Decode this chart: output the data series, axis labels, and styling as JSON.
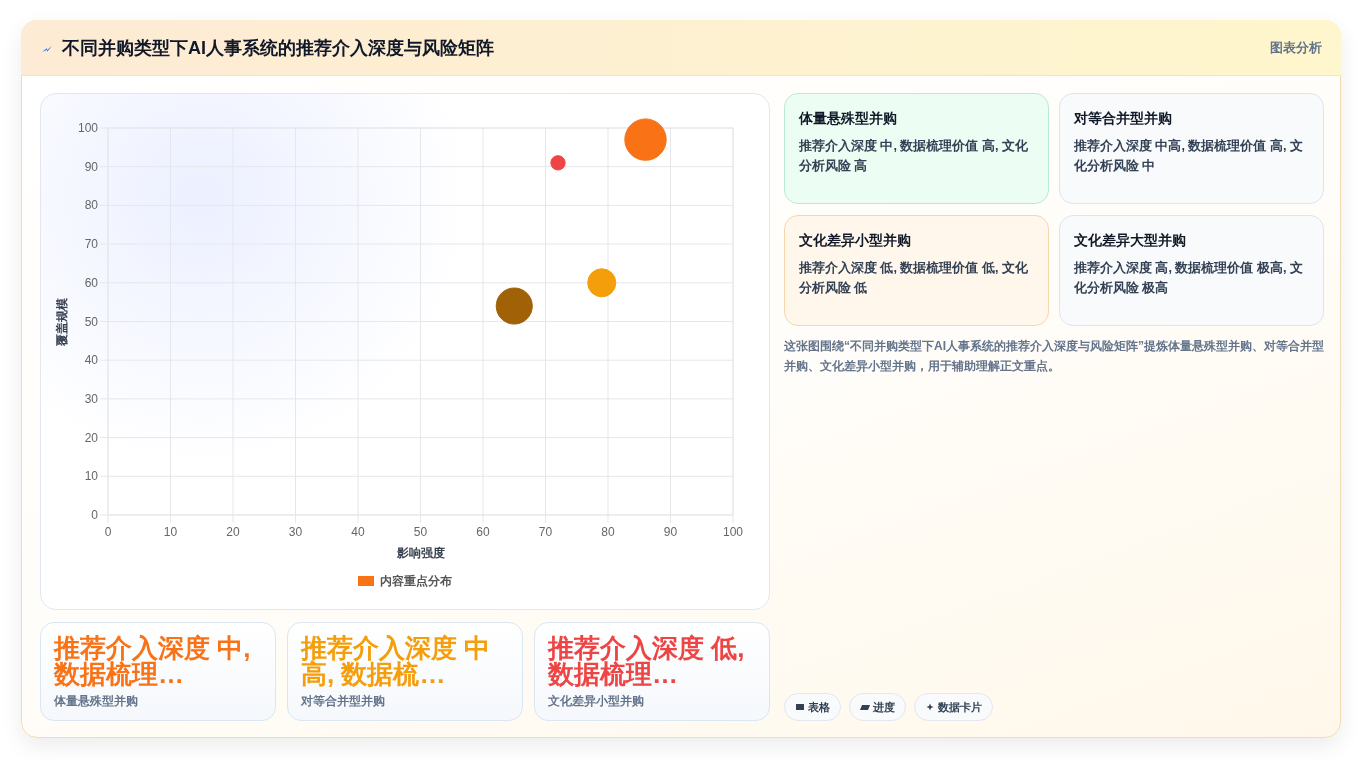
{
  "chart_data": [
    {
      "type": "other",
      "title": "不同并购类型下AI人事系统的推荐介入深度与风险矩阵",
      "annotations": [
        "图表分析"
      ]
    },
    {
      "type": "bubble",
      "xlabel": "影响强度",
      "ylabel": "覆盖规模",
      "xlim": [
        0,
        100
      ],
      "ylim": [
        0,
        100
      ],
      "xticks": [
        0,
        10,
        20,
        30,
        40,
        50,
        60,
        70,
        80,
        90,
        100
      ],
      "yticks": [
        0,
        10,
        20,
        30,
        40,
        50,
        60,
        70,
        80,
        90,
        100
      ],
      "grid": true,
      "legend": "bottom",
      "marker": "circle",
      "series": [
        {
          "name": "内容重点分布",
          "color": "#f97316",
          "colors": [
            "#f97316",
            "#f59e0b",
            "#ef4444",
            "#a16207"
          ],
          "x": [
            86,
            79,
            72,
            65
          ],
          "values": [
            97,
            60,
            91,
            54
          ],
          "sizes": [
            1,
            0.46,
            0.12,
            0.76
          ]
        }
      ]
    },
    {
      "type": "other",
      "title": "体量悬殊型并购",
      "annotations": [
        "推荐介入深度 中, 数据梳理价值 高, 文化分析风险 高"
      ]
    },
    {
      "type": "other",
      "title": "对等合并型并购",
      "annotations": [
        "推荐介入深度 中高, 数据梳理价值 高, 文化分析风险 中"
      ]
    },
    {
      "type": "other",
      "title": "文化差异小型并购",
      "annotations": [
        "推荐介入深度 低, 数据梳理价值 低, 文化分析风险 低"
      ]
    },
    {
      "type": "other",
      "title": "文化差异大型并购",
      "annotations": [
        "推荐介入深度 高, 数据梳理价值 极高, 文化分析风险 极高"
      ]
    },
    {
      "type": "other",
      "annotations": [
        "这张图围绕“不同并购类型下AI人事系统的推荐介入深度与风险矩阵”提炼体量悬殊型并购、对等合并型并购、文化差异小型并购，用于辅助理解正文重点。"
      ]
    },
    {
      "type": "other",
      "title": "推荐介入深度 中, 数据梳理…",
      "subtitle": "体量悬殊型并购"
    },
    {
      "type": "other",
      "title": "推荐介入深度 中高, 数据梳…",
      "subtitle": "对等合并型并购"
    },
    {
      "type": "other",
      "title": "推荐介入深度 低, 数据梳理…",
      "subtitle": "文化差异小型并购"
    },
    {
      "type": "other",
      "annotations": [
        "表格",
        "进度",
        "数据卡片"
      ]
    }
  ]
}
